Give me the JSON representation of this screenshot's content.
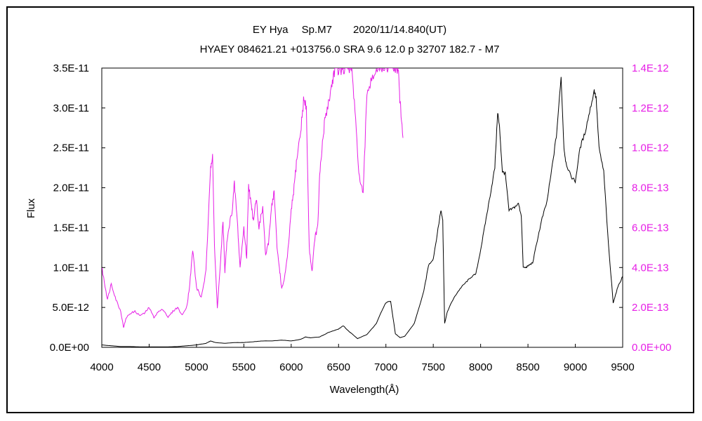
{
  "chart_data": {
    "type": "line",
    "title": "EY Hya　 Sp.M7　　2020/11/14.840(UT)",
    "subtitle": "HYAEY 084621.21 +013756.0 SRA 9.6 12.0 p 32707 182.7 - M7",
    "xlabel": "Wavelength(Å)",
    "ylabel": "Flux",
    "xlim": [
      4000,
      9500
    ],
    "ylim_left": [
      0,
      3.5e-11
    ],
    "ylim_right": [
      0,
      1.4e-12
    ],
    "x_ticks": [
      "4000",
      "4500",
      "5000",
      "5500",
      "6000",
      "6500",
      "7000",
      "7500",
      "8000",
      "8500",
      "9000",
      "9500"
    ],
    "y_left_ticks": [
      "0.0E+00",
      "5.0E-12",
      "1.0E-11",
      "1.5E-11",
      "2.0E-11",
      "2.5E-11",
      "3.0E-11",
      "3.5E-11"
    ],
    "y_right_ticks": [
      "0.0E+00",
      "2.0E-13",
      "4.0E-13",
      "6.0E-13",
      "8.0E-13",
      "1.0E-12",
      "1.2E-12",
      "1.4E-12"
    ],
    "grid": false,
    "legend": "none",
    "colors": {
      "black_series": "#000000",
      "magenta_series": "#e61ee6",
      "background": "#ffffff"
    },
    "series": [
      {
        "axis": "left",
        "color": "#000000",
        "x": [
          4000,
          4100,
          4200,
          4300,
          4400,
          4500,
          4600,
          4700,
          4800,
          4900,
          5000,
          5100,
          5150,
          5200,
          5300,
          5400,
          5500,
          5600,
          5700,
          5800,
          5900,
          6000,
          6100,
          6150,
          6200,
          6300,
          6400,
          6500,
          6550,
          6600,
          6700,
          6800,
          6900,
          6950,
          7000,
          7050,
          7100,
          7150,
          7200,
          7300,
          7400,
          7450,
          7500,
          7550,
          7580,
          7600,
          7620,
          7650,
          7700,
          7750,
          7800,
          7850,
          7900,
          7950,
          8000,
          8050,
          8100,
          8150,
          8180,
          8200,
          8230,
          8260,
          8300,
          8350,
          8400,
          8430,
          8450,
          8480,
          8500,
          8550,
          8600,
          8650,
          8700,
          8750,
          8800,
          8850,
          8880,
          8900,
          8950,
          9000,
          9050,
          9100,
          9150,
          9200,
          9220,
          9250,
          9300,
          9350,
          9400,
          9450,
          9500
        ],
        "y": [
          3e-13,
          2e-13,
          1e-13,
          1e-13,
          5e-14,
          5e-14,
          5e-14,
          5e-14,
          1e-13,
          2e-13,
          3e-13,
          5e-13,
          8e-13,
          6e-13,
          5e-13,
          6e-13,
          6e-13,
          7e-13,
          8e-13,
          8e-13,
          9e-13,
          8e-13,
          1e-12,
          1.3e-12,
          1.2e-12,
          1.3e-12,
          1.9e-12,
          2.3e-12,
          2.7e-12,
          2.1e-12,
          1.1e-12,
          1.6e-12,
          3e-12,
          4.4e-12,
          5.6e-12,
          5.8e-12,
          1.7e-12,
          1.2e-12,
          1.4e-12,
          3e-12,
          7e-12,
          1.03e-11,
          1.11e-11,
          1.48e-11,
          1.72e-11,
          1.6e-11,
          3e-12,
          4.5e-12,
          5.8e-12,
          6.8e-12,
          7.6e-12,
          8.2e-12,
          8.8e-12,
          9.2e-12,
          1.22e-11,
          1.56e-11,
          1.9e-11,
          2.25e-11,
          2.95e-11,
          2.75e-11,
          2.2e-11,
          2.18e-11,
          1.71e-11,
          1.75e-11,
          1.8e-11,
          1.65e-11,
          1e-11,
          1e-11,
          1.02e-11,
          1.06e-11,
          1.35e-11,
          1.62e-11,
          1.82e-11,
          2.22e-11,
          2.65e-11,
          3.38e-11,
          2.5e-11,
          2.32e-11,
          2.15e-11,
          2.08e-11,
          2.5e-11,
          2.68e-11,
          2.95e-11,
          3.22e-11,
          3.12e-11,
          2.5e-11,
          2.2e-11,
          1.28e-11,
          5.6e-12,
          7.6e-12,
          8.9e-12
        ]
      },
      {
        "axis": "right",
        "color": "#e61ee6",
        "x": [
          4000,
          4030,
          4060,
          4100,
          4150,
          4200,
          4230,
          4260,
          4300,
          4350,
          4400,
          4450,
          4500,
          4550,
          4600,
          4650,
          4700,
          4750,
          4800,
          4850,
          4900,
          4930,
          4960,
          5000,
          5050,
          5100,
          5150,
          5170,
          5190,
          5220,
          5250,
          5280,
          5300,
          5320,
          5350,
          5380,
          5400,
          5430,
          5460,
          5500,
          5530,
          5550,
          5580,
          5600,
          5630,
          5660,
          5700,
          5730,
          5760,
          5790,
          5820,
          5850,
          5880,
          5900,
          5930,
          5960,
          6000,
          6030,
          6060,
          6100,
          6130,
          6160,
          6190,
          6220,
          6250,
          6280,
          6300,
          6330,
          6360,
          6400,
          6430,
          6460,
          6490,
          6520,
          6560,
          6600,
          6640,
          6680,
          6720,
          6760,
          6800,
          6850,
          6900,
          6950,
          7000,
          7050,
          7100,
          7130,
          7150,
          7180
        ],
        "y": [
          4e-13,
          3.2e-13,
          2.4e-13,
          3.2e-13,
          2.4e-13,
          1.8e-13,
          1e-13,
          1.5e-13,
          1.7e-13,
          1.8e-13,
          1.6e-13,
          1.7e-13,
          2e-13,
          1.5e-13,
          1.8e-13,
          1.9e-13,
          1.5e-13,
          1.8e-13,
          2e-13,
          1.6e-13,
          2.1e-13,
          3.2e-13,
          4.9e-13,
          3e-13,
          2.5e-13,
          3.8e-13,
          9e-13,
          9.8e-13,
          5e-13,
          2e-13,
          4e-13,
          6.3e-13,
          3.8e-13,
          5.2e-13,
          6.2e-13,
          7e-13,
          8.2e-13,
          6.4e-13,
          4e-13,
          6e-13,
          4.5e-13,
          8.2e-13,
          7e-13,
          6.4e-13,
          7.5e-13,
          6e-13,
          7e-13,
          4.6e-13,
          5.2e-13,
          7e-13,
          7.8e-13,
          5e-13,
          3.8e-13,
          2.9e-13,
          3.5e-13,
          4.5e-13,
          6.8e-13,
          8e-13,
          9.5e-13,
          1.08e-12,
          1.24e-12,
          1.2e-12,
          5e-13,
          3.8e-13,
          5.5e-13,
          6e-13,
          8.5e-13,
          1.02e-12,
          1.16e-12,
          1.24e-12,
          1.32e-12,
          1.4e-12,
          1.4e-12,
          1.4e-12,
          1.4e-12,
          1.4e-12,
          1.4e-12,
          1.12e-12,
          8.5e-13,
          7.6e-13,
          1.28e-12,
          1.35e-12,
          1.4e-12,
          1.4e-12,
          1.4e-12,
          1.4e-12,
          1.4e-12,
          1.4e-12,
          1.22e-12,
          1.05e-12
        ]
      }
    ]
  }
}
